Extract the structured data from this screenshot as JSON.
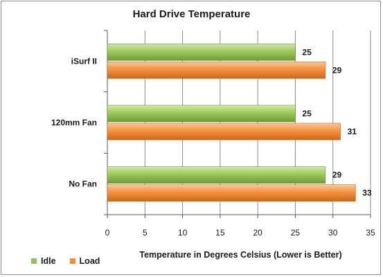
{
  "chart_data": {
    "type": "bar",
    "orientation": "horizontal",
    "title": "Hard Drive Temperature",
    "xlabel": "Temperature in Degrees Celsius (Lower is Better)",
    "ylabel": "",
    "categories": [
      "iSurf II",
      "120mm Fan",
      "No Fan"
    ],
    "series": [
      {
        "name": "Idle",
        "values": [
          25,
          25,
          29
        ],
        "color": "#94c25a"
      },
      {
        "name": "Load",
        "values": [
          29,
          31,
          33
        ],
        "color": "#f48c3c"
      }
    ],
    "xlim": [
      0,
      35
    ],
    "xticks": [
      0,
      5,
      10,
      15,
      20,
      25,
      30,
      35
    ],
    "grid": true,
    "legend_position": "bottom-left",
    "data_labels": true
  }
}
